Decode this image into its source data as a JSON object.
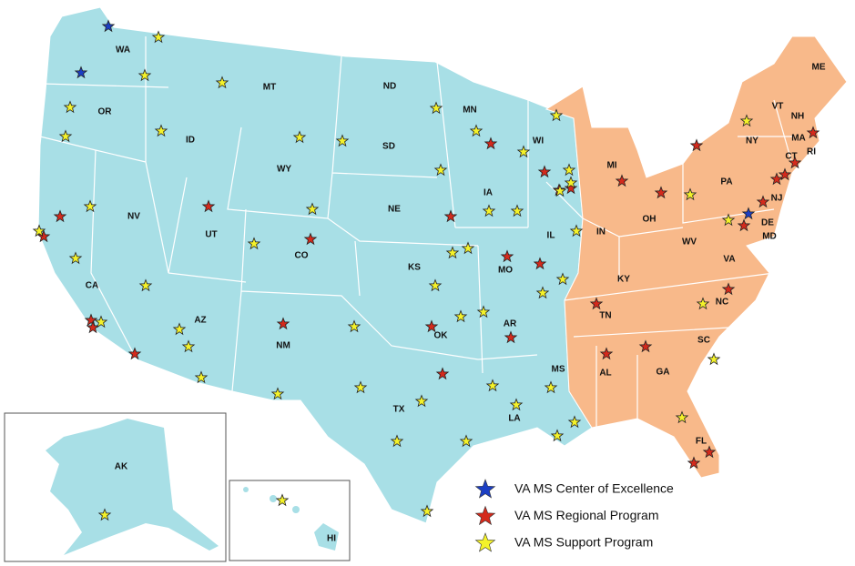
{
  "states": [
    "WA",
    "OR",
    "CA",
    "NV",
    "ID",
    "MT",
    "WY",
    "UT",
    "CO",
    "AZ",
    "NM",
    "ND",
    "SD",
    "NE",
    "KS",
    "OK",
    "TX",
    "MN",
    "IA",
    "MO",
    "AR",
    "LA",
    "WI",
    "IL",
    "MS",
    "MI",
    "IN",
    "OH",
    "KY",
    "TN",
    "AL",
    "GA",
    "FL",
    "SC",
    "NC",
    "VA",
    "WV",
    "PA",
    "NY",
    "VT",
    "NH",
    "ME",
    "MA",
    "RI",
    "CT",
    "NJ",
    "DE",
    "MD",
    "AK",
    "HI"
  ],
  "legend": [
    {
      "label": "VA MS Center of Excellence",
      "color": "#1c3fc4"
    },
    {
      "label": "VA MS Regional Program",
      "color": "#d42a1c"
    },
    {
      "label": "VA MS Support Program",
      "color": "#f4f22a"
    }
  ]
}
